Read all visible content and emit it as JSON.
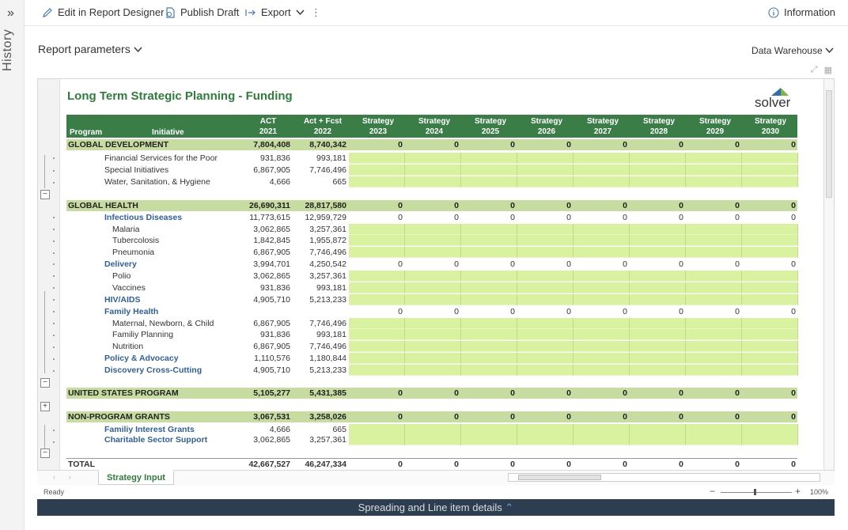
{
  "sidebar": {
    "label": "History",
    "expand_icon": "double-chevron-right-icon"
  },
  "toolbar": {
    "edit_label": "Edit in Report Designer",
    "publish_label": "Publish Draft",
    "export_label": "Export",
    "info_label": "Information"
  },
  "params": {
    "label": "Report parameters",
    "source": "Data Warehouse"
  },
  "report": {
    "title": "Long Term Strategic Planning - Funding",
    "logo_text": "solver",
    "headers": {
      "program": "Program",
      "initiative": "Initiative",
      "cols": [
        [
          "ACT",
          "2021"
        ],
        [
          "Act + Fcst",
          "2022"
        ],
        [
          "Strategy",
          "2023"
        ],
        [
          "Strategy",
          "2024"
        ],
        [
          "Strategy",
          "2025"
        ],
        [
          "Strategy",
          "2026"
        ],
        [
          "Strategy",
          "2027"
        ],
        [
          "Strategy",
          "2028"
        ],
        [
          "Strategy",
          "2029"
        ],
        [
          "Strategy",
          "2030"
        ]
      ]
    },
    "rows": [
      {
        "name": "GLOBAL DEVELOPMENT",
        "kind": "group",
        "act": "7,804,408",
        "fcst": "8,740,342",
        "strategy": [
          "0",
          "0",
          "0",
          "0",
          "0",
          "0",
          "0",
          "0"
        ]
      },
      {
        "name": "Financial Services for the Poor",
        "kind": "item",
        "act": "931,836",
        "fcst": "993,181"
      },
      {
        "name": "Special Initiatives",
        "kind": "item",
        "act": "6,867,905",
        "fcst": "7,746,496"
      },
      {
        "name": "Water, Sanitation, & Hygiene",
        "kind": "item",
        "act": "4,666",
        "fcst": "665"
      },
      {
        "name": "GLOBAL HEALTH",
        "kind": "group",
        "act": "26,690,311",
        "fcst": "28,817,580",
        "strategy": [
          "0",
          "0",
          "0",
          "0",
          "0",
          "0",
          "0",
          "0"
        ]
      },
      {
        "name": "Infectious Diseases",
        "kind": "sub",
        "act": "11,773,615",
        "fcst": "12,959,729",
        "strategy": [
          "0",
          "0",
          "0",
          "0",
          "0",
          "0",
          "0",
          "0"
        ]
      },
      {
        "name": "Malaria",
        "kind": "leaf",
        "act": "3,062,865",
        "fcst": "3,257,361"
      },
      {
        "name": "Tubercolosis",
        "kind": "leaf",
        "act": "1,842,845",
        "fcst": "1,955,872"
      },
      {
        "name": "Pneumonia",
        "kind": "leaf",
        "act": "6,867,905",
        "fcst": "7,746,496"
      },
      {
        "name": "Delivery",
        "kind": "sub",
        "act": "3,994,701",
        "fcst": "4,250,542",
        "strategy": [
          "0",
          "0",
          "0",
          "0",
          "0",
          "0",
          "0",
          "0"
        ]
      },
      {
        "name": "Polio",
        "kind": "leaf",
        "act": "3,062,865",
        "fcst": "3,257,361"
      },
      {
        "name": "Vaccines",
        "kind": "leaf",
        "act": "931,836",
        "fcst": "993,181"
      },
      {
        "name": "HIV/AIDS",
        "kind": "subinput",
        "act": "4,905,710",
        "fcst": "5,213,233"
      },
      {
        "name": "Family Health",
        "kind": "sub",
        "act": "",
        "fcst": "",
        "strategy": [
          "0",
          "0",
          "0",
          "0",
          "0",
          "0",
          "0",
          "0"
        ]
      },
      {
        "name": "Maternal, Newborn, & Child",
        "kind": "leaf",
        "act": "6,867,905",
        "fcst": "7,746,496"
      },
      {
        "name": "Familiy Planning",
        "kind": "leaf",
        "act": "931,836",
        "fcst": "993,181"
      },
      {
        "name": "Nutrition",
        "kind": "leaf",
        "act": "6,867,905",
        "fcst": "7,746,496"
      },
      {
        "name": "Policy & Advocacy",
        "kind": "subinput",
        "act": "1,110,576",
        "fcst": "1,180,844"
      },
      {
        "name": "Discovery Cross-Cutting",
        "kind": "subinput",
        "act": "4,905,710",
        "fcst": "5,213,233"
      },
      {
        "name": "UNITED STATES PROGRAM",
        "kind": "group",
        "act": "5,105,277",
        "fcst": "5,431,385",
        "strategy": [
          "0",
          "0",
          "0",
          "0",
          "0",
          "0",
          "0",
          "0"
        ]
      },
      {
        "name": "NON-PROGRAM GRANTS",
        "kind": "group",
        "act": "3,067,531",
        "fcst": "3,258,026",
        "strategy": [
          "0",
          "0",
          "0",
          "0",
          "0",
          "0",
          "0",
          "0"
        ]
      },
      {
        "name": "Familiy Interest Grants",
        "kind": "subinput",
        "act": "4,666",
        "fcst": "665"
      },
      {
        "name": "Charitable Sector Support",
        "kind": "subinput",
        "act": "3,062,865",
        "fcst": "3,257,361"
      },
      {
        "name": "TOTAL",
        "kind": "total",
        "act": "42,667,527",
        "fcst": "46,247,334",
        "strategy": [
          "0",
          "0",
          "0",
          "0",
          "0",
          "0",
          "0",
          "0"
        ]
      }
    ]
  },
  "sheet_tab": "Strategy Input",
  "status": {
    "ready": "Ready",
    "zoom": "100%"
  },
  "bottom_bar": "Spreading and Line item details"
}
